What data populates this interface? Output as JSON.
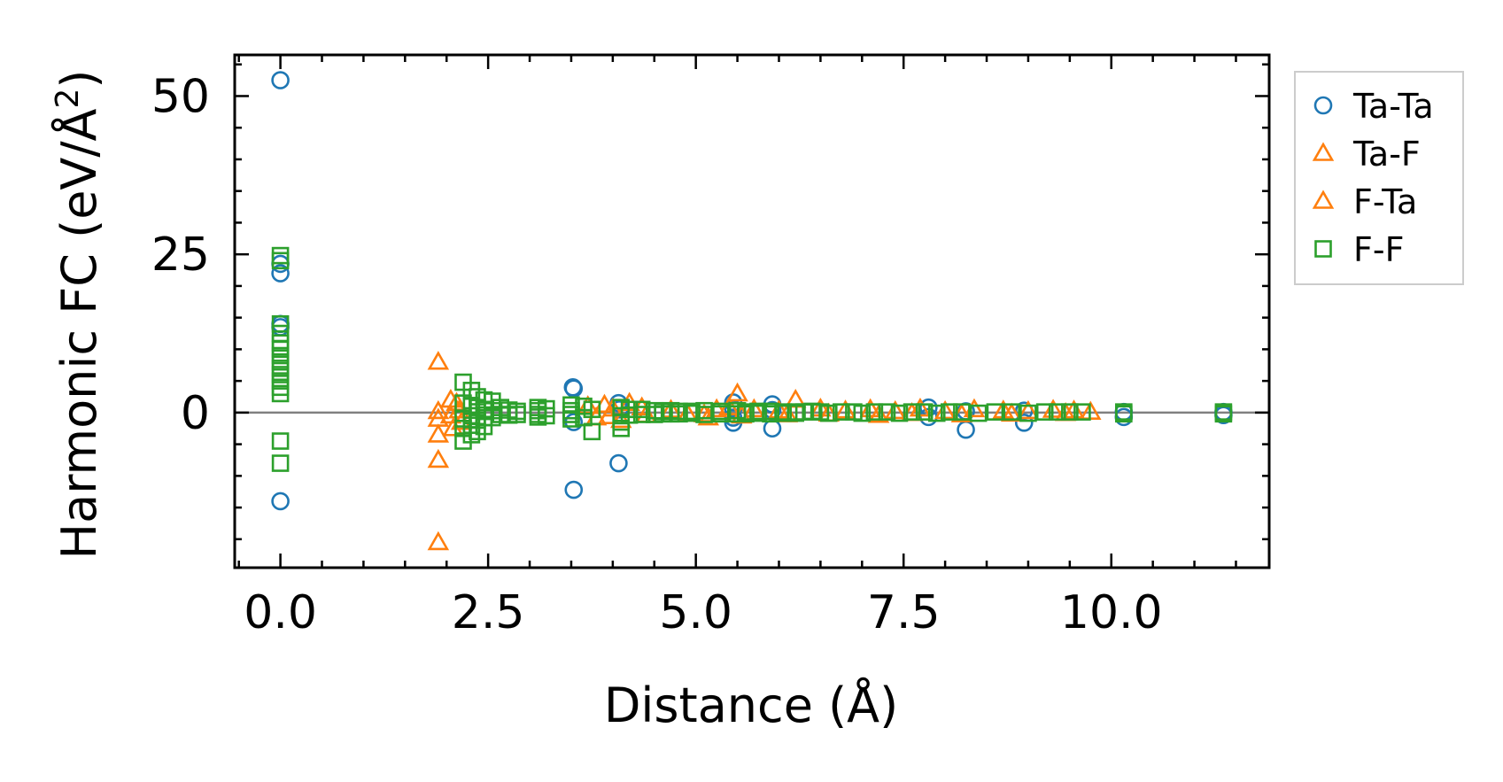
{
  "chart_data": {
    "type": "scatter",
    "title": "",
    "xlabel": "Distance (Å)",
    "ylabel_main": "Harmonic FC (eV/Å",
    "ylabel_sup": "2",
    "ylabel_close": ")",
    "xlim": [
      -0.55,
      11.9
    ],
    "ylim": [
      -24.5,
      56.5
    ],
    "xticks": [
      0.0,
      2.5,
      5.0,
      7.5,
      10.0
    ],
    "xtick_labels": [
      "0.0",
      "2.5",
      "5.0",
      "7.5",
      "10.0"
    ],
    "yticks": [
      0,
      25,
      50
    ],
    "ytick_labels": [
      "0",
      "25",
      "50"
    ],
    "x_minor_step": 0.5,
    "y_minor_step": 5,
    "zero_line": true,
    "legend_position": "outside-right-top",
    "series": [
      {
        "name": "Ta-Ta",
        "marker": "circle",
        "color": "#1f77b4",
        "points": [
          [
            0,
            52.5
          ],
          [
            0,
            23.5
          ],
          [
            0,
            22.0
          ],
          [
            0,
            14.0
          ],
          [
            0,
            13.5
          ],
          [
            0,
            -14.0
          ],
          [
            3.52,
            4.0
          ],
          [
            3.53,
            3.8
          ],
          [
            3.53,
            -1.5
          ],
          [
            3.53,
            -12.2
          ],
          [
            4.07,
            1.5
          ],
          [
            4.08,
            0.5
          ],
          [
            4.07,
            -8.0
          ],
          [
            5.45,
            1.6
          ],
          [
            5.45,
            0.6
          ],
          [
            5.45,
            -0.8
          ],
          [
            5.45,
            -1.6
          ],
          [
            5.92,
            1.3
          ],
          [
            5.92,
            0.4
          ],
          [
            5.92,
            -2.5
          ],
          [
            7.8,
            0.8
          ],
          [
            7.8,
            -0.7
          ],
          [
            8.25,
            0.2
          ],
          [
            8.25,
            -2.7
          ],
          [
            8.95,
            0.3
          ],
          [
            8.95,
            -1.6
          ],
          [
            10.15,
            0.1
          ],
          [
            10.15,
            -0.7
          ],
          [
            11.35,
            0.1
          ],
          [
            11.35,
            -0.4
          ]
        ]
      },
      {
        "name": "Ta-F",
        "marker": "triangle",
        "color": "#ff7f0e",
        "points": [
          [
            1.9,
            8.0
          ],
          [
            1.9,
            0.2
          ],
          [
            1.9,
            -3.5
          ],
          [
            1.9,
            -7.5
          ],
          [
            1.9,
            -20.5
          ],
          [
            2.05,
            2.0
          ],
          [
            2.05,
            -0.5
          ],
          [
            2.12,
            1.5
          ],
          [
            2.18,
            -1.5
          ],
          [
            3.7,
            1.0
          ],
          [
            3.9,
            1.2
          ],
          [
            4.0,
            0.6
          ],
          [
            4.2,
            1.5
          ],
          [
            4.35,
            0.8
          ],
          [
            4.7,
            0.4
          ],
          [
            5.1,
            -0.3
          ],
          [
            5.25,
            0.5
          ],
          [
            5.4,
            0.8
          ],
          [
            5.5,
            3.0
          ],
          [
            5.7,
            0.5
          ],
          [
            6.0,
            0.3
          ],
          [
            6.2,
            2.0
          ],
          [
            6.5,
            0.6
          ],
          [
            6.8,
            0.3
          ],
          [
            7.1,
            0.5
          ],
          [
            7.4,
            0.2
          ],
          [
            7.7,
            0.6
          ],
          [
            8.0,
            0.2
          ],
          [
            8.35,
            0.5
          ],
          [
            8.7,
            0.3
          ],
          [
            9.0,
            0.2
          ],
          [
            9.3,
            0.4
          ],
          [
            9.55,
            0.3
          ],
          [
            9.75,
            0.1
          ]
        ]
      },
      {
        "name": "F-Ta",
        "marker": "triangle",
        "color": "#ff7f0e",
        "points": [
          [
            1.9,
            -1.0
          ],
          [
            2.08,
            -2.5
          ],
          [
            2.15,
            0.3
          ],
          [
            3.8,
            -0.8
          ],
          [
            3.95,
            -0.6
          ],
          [
            4.1,
            -1.2
          ],
          [
            4.4,
            -0.4
          ],
          [
            4.9,
            -0.2
          ],
          [
            5.15,
            -0.8
          ],
          [
            5.55,
            -0.5
          ],
          [
            6.1,
            -0.3
          ],
          [
            6.6,
            -0.2
          ],
          [
            7.2,
            -0.4
          ],
          [
            7.6,
            -0.1
          ],
          [
            8.2,
            -0.3
          ],
          [
            8.8,
            -0.2
          ],
          [
            9.45,
            -0.1
          ]
        ]
      },
      {
        "name": "F-F",
        "marker": "square",
        "color": "#2ca02c",
        "points": [
          [
            0,
            24.8
          ],
          [
            0,
            24.0
          ],
          [
            0,
            14.0
          ],
          [
            0,
            12.5
          ],
          [
            0,
            11.0
          ],
          [
            0,
            10.0
          ],
          [
            0,
            9.0
          ],
          [
            0,
            8.0
          ],
          [
            0,
            7.0
          ],
          [
            0,
            6.0
          ],
          [
            0,
            5.0
          ],
          [
            0,
            4.0
          ],
          [
            0,
            3.0
          ],
          [
            0,
            -4.5
          ],
          [
            0,
            -8.0
          ],
          [
            2.2,
            4.8
          ],
          [
            2.2,
            1.5
          ],
          [
            2.2,
            -1.0
          ],
          [
            2.2,
            -2.5
          ],
          [
            2.2,
            -4.5
          ],
          [
            2.3,
            3.5
          ],
          [
            2.3,
            1.0
          ],
          [
            2.3,
            -0.5
          ],
          [
            2.3,
            -2.0
          ],
          [
            2.3,
            -3.5
          ],
          [
            2.37,
            2.5
          ],
          [
            2.37,
            0.8
          ],
          [
            2.37,
            -1.2
          ],
          [
            2.37,
            -3.0
          ],
          [
            2.45,
            2.0
          ],
          [
            2.45,
            0.5
          ],
          [
            2.45,
            -0.8
          ],
          [
            2.45,
            -2.2
          ],
          [
            2.55,
            1.8
          ],
          [
            2.55,
            0.3
          ],
          [
            2.55,
            -0.8
          ],
          [
            2.65,
            0.8
          ],
          [
            2.65,
            -0.3
          ],
          [
            2.75,
            0.4
          ],
          [
            2.75,
            -0.4
          ],
          [
            2.85,
            0.2
          ],
          [
            2.85,
            -0.3
          ],
          [
            3.1,
            0.8
          ],
          [
            3.1,
            0.3
          ],
          [
            3.1,
            -0.3
          ],
          [
            3.1,
            -0.7
          ],
          [
            3.2,
            0.6
          ],
          [
            3.2,
            -0.5
          ],
          [
            3.5,
            1.2
          ],
          [
            3.5,
            0.3
          ],
          [
            3.5,
            -0.3
          ],
          [
            3.5,
            -1.0
          ],
          [
            3.65,
            1.0
          ],
          [
            3.65,
            -0.8
          ],
          [
            3.75,
            0.5
          ],
          [
            3.75,
            -3.0
          ],
          [
            4.1,
            0.8
          ],
          [
            4.1,
            -0.5
          ],
          [
            4.1,
            -1.5
          ],
          [
            4.1,
            -2.5
          ],
          [
            4.2,
            0.5
          ],
          [
            4.2,
            -0.4
          ],
          [
            4.35,
            0.5
          ],
          [
            4.35,
            -0.3
          ],
          [
            4.5,
            0.3
          ],
          [
            4.5,
            -0.3
          ],
          [
            4.6,
            0.2
          ],
          [
            4.6,
            -0.2
          ],
          [
            4.7,
            0.3
          ],
          [
            4.7,
            -0.2
          ],
          [
            4.8,
            0.2
          ],
          [
            4.8,
            -0.2
          ],
          [
            4.95,
            0.2
          ],
          [
            4.95,
            -0.1
          ],
          [
            5.1,
            0.3
          ],
          [
            5.1,
            -0.3
          ],
          [
            5.3,
            0.2
          ],
          [
            5.3,
            -0.2
          ],
          [
            5.5,
            0.3
          ],
          [
            5.5,
            -0.2
          ],
          [
            5.6,
            0.1
          ],
          [
            5.6,
            -0.2
          ],
          [
            5.75,
            0.2
          ],
          [
            5.75,
            -0.1
          ],
          [
            5.9,
            0.2
          ],
          [
            5.9,
            -0.2
          ],
          [
            6.05,
            0.1
          ],
          [
            6.05,
            -0.1
          ],
          [
            6.2,
            0.1
          ],
          [
            6.2,
            -0.1
          ],
          [
            6.3,
            0.1
          ],
          [
            6.4,
            0.2
          ],
          [
            6.5,
            0.1
          ],
          [
            6.6,
            -0.1
          ],
          [
            6.75,
            0.1
          ],
          [
            6.9,
            0.1
          ],
          [
            7.0,
            -0.1
          ],
          [
            7.15,
            0.1
          ],
          [
            7.3,
            0.1
          ],
          [
            7.45,
            -0.1
          ],
          [
            7.6,
            0.1
          ],
          [
            7.75,
            0.1
          ],
          [
            7.9,
            -0.1
          ],
          [
            8.05,
            0.1
          ],
          [
            8.2,
            0.1
          ],
          [
            8.4,
            -0.1
          ],
          [
            8.6,
            0.1
          ],
          [
            8.8,
            0.1
          ],
          [
            9.0,
            -0.1
          ],
          [
            9.2,
            0.1
          ],
          [
            9.35,
            0.1
          ],
          [
            9.5,
            0.1
          ],
          [
            9.65,
            0.1
          ],
          [
            10.15,
            0.1
          ],
          [
            10.15,
            -0.2
          ],
          [
            11.35,
            0.1
          ],
          [
            11.35,
            -0.2
          ]
        ]
      }
    ]
  },
  "legend": {
    "entries": [
      {
        "label": "Ta-Ta",
        "marker": "circle",
        "color": "#1f77b4"
      },
      {
        "label": "Ta-F",
        "marker": "triangle",
        "color": "#ff7f0e"
      },
      {
        "label": "F-Ta",
        "marker": "triangle",
        "color": "#ff7f0e"
      },
      {
        "label": "F-F",
        "marker": "square",
        "color": "#2ca02c"
      }
    ]
  },
  "colors": {
    "axis": "#000000",
    "zero_line": "#808080",
    "legend_border": "#cccccc"
  }
}
